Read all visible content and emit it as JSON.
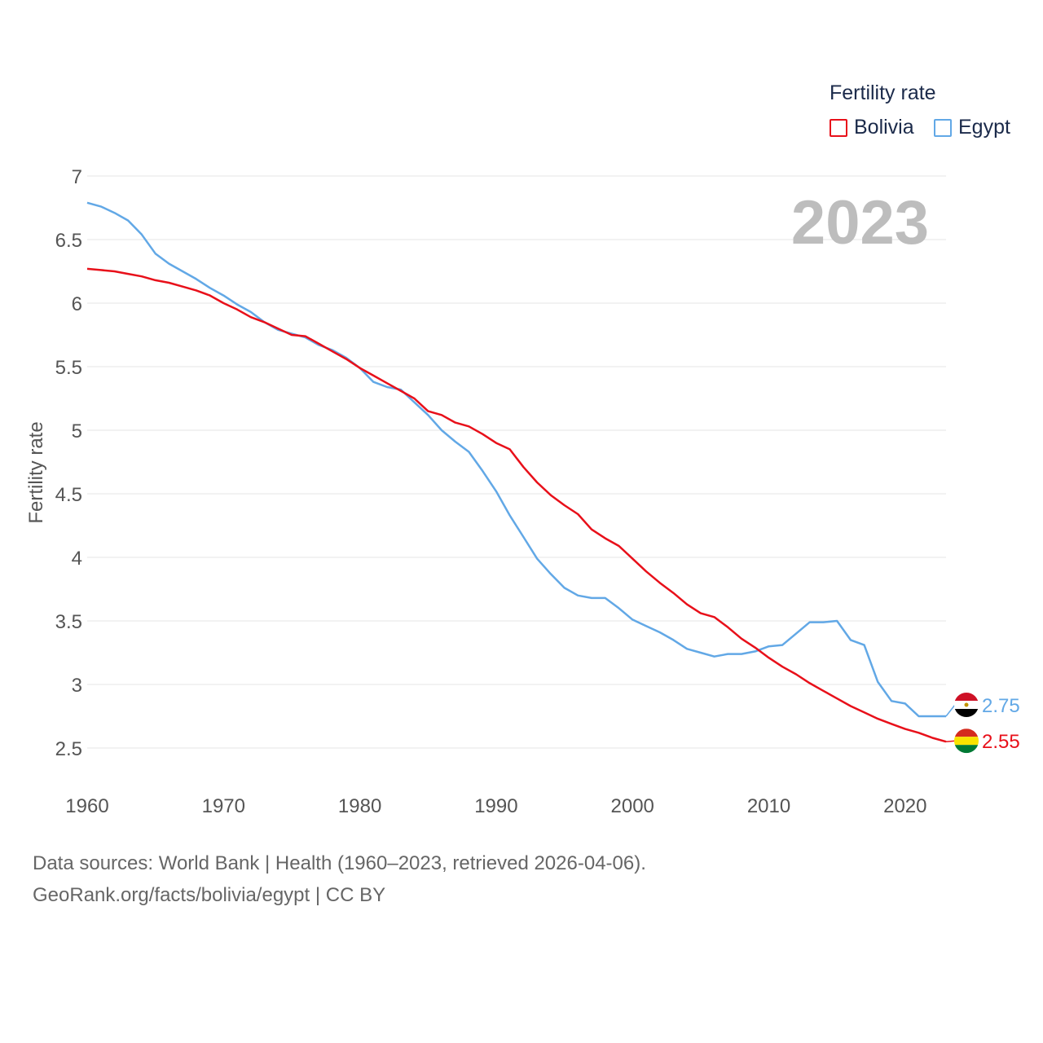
{
  "chart_data": {
    "type": "line",
    "title": "",
    "ylabel": "Fertility rate",
    "xlabel": "",
    "xlim": [
      1960,
      2023
    ],
    "ylim": [
      2.2,
      7
    ],
    "x_ticks": [
      1960,
      1970,
      1980,
      1990,
      2000,
      2010,
      2020
    ],
    "y_ticks": [
      2.5,
      3,
      3.5,
      4,
      4.5,
      5,
      5.5,
      6,
      6.5,
      7
    ],
    "year_display": "2023",
    "legend": {
      "title": "Fertility rate",
      "position": "top-right"
    },
    "x": [
      1960,
      1961,
      1962,
      1963,
      1964,
      1965,
      1966,
      1967,
      1968,
      1969,
      1970,
      1971,
      1972,
      1973,
      1974,
      1975,
      1976,
      1977,
      1978,
      1979,
      1980,
      1981,
      1982,
      1983,
      1984,
      1985,
      1986,
      1987,
      1988,
      1989,
      1990,
      1991,
      1992,
      1993,
      1994,
      1995,
      1996,
      1997,
      1998,
      1999,
      2000,
      2001,
      2002,
      2003,
      2004,
      2005,
      2006,
      2007,
      2008,
      2009,
      2010,
      2011,
      2012,
      2013,
      2014,
      2015,
      2016,
      2017,
      2018,
      2019,
      2020,
      2021,
      2022,
      2023
    ],
    "series": [
      {
        "name": "Bolivia",
        "color": "#e8101a",
        "end_label": "2.55",
        "values": [
          6.27,
          6.26,
          6.25,
          6.23,
          6.21,
          6.18,
          6.16,
          6.13,
          6.1,
          6.06,
          6.0,
          5.95,
          5.89,
          5.85,
          5.8,
          5.75,
          5.74,
          5.68,
          5.62,
          5.56,
          5.49,
          5.43,
          5.37,
          5.31,
          5.25,
          5.15,
          5.12,
          5.06,
          5.03,
          4.97,
          4.9,
          4.85,
          4.71,
          4.59,
          4.49,
          4.41,
          4.34,
          4.22,
          4.15,
          4.09,
          3.99,
          3.89,
          3.8,
          3.72,
          3.63,
          3.56,
          3.53,
          3.45,
          3.36,
          3.29,
          3.21,
          3.14,
          3.08,
          3.01,
          2.95,
          2.89,
          2.83,
          2.78,
          2.73,
          2.69,
          2.65,
          2.62,
          2.58,
          2.55
        ]
      },
      {
        "name": "Egypt",
        "color": "#62a8e6",
        "end_label": "2.75",
        "values": [
          6.79,
          6.76,
          6.71,
          6.65,
          6.54,
          6.39,
          6.31,
          6.25,
          6.19,
          6.12,
          6.06,
          5.99,
          5.93,
          5.85,
          5.79,
          5.76,
          5.73,
          5.67,
          5.63,
          5.57,
          5.49,
          5.38,
          5.34,
          5.32,
          5.22,
          5.12,
          5.0,
          4.91,
          4.83,
          4.68,
          4.52,
          4.33,
          4.16,
          3.99,
          3.87,
          3.76,
          3.7,
          3.68,
          3.68,
          3.6,
          3.51,
          3.46,
          3.41,
          3.35,
          3.28,
          3.25,
          3.22,
          3.24,
          3.24,
          3.26,
          3.3,
          3.31,
          3.4,
          3.49,
          3.49,
          3.5,
          3.35,
          3.31,
          3.02,
          2.87,
          2.85,
          2.75,
          2.75,
          2.75
        ]
      }
    ]
  },
  "source": {
    "line1": "Data sources: World Bank | Health (1960–2023, retrieved 2026-04-06).",
    "line2": "GeoRank.org/facts/bolivia/egypt | CC BY"
  }
}
